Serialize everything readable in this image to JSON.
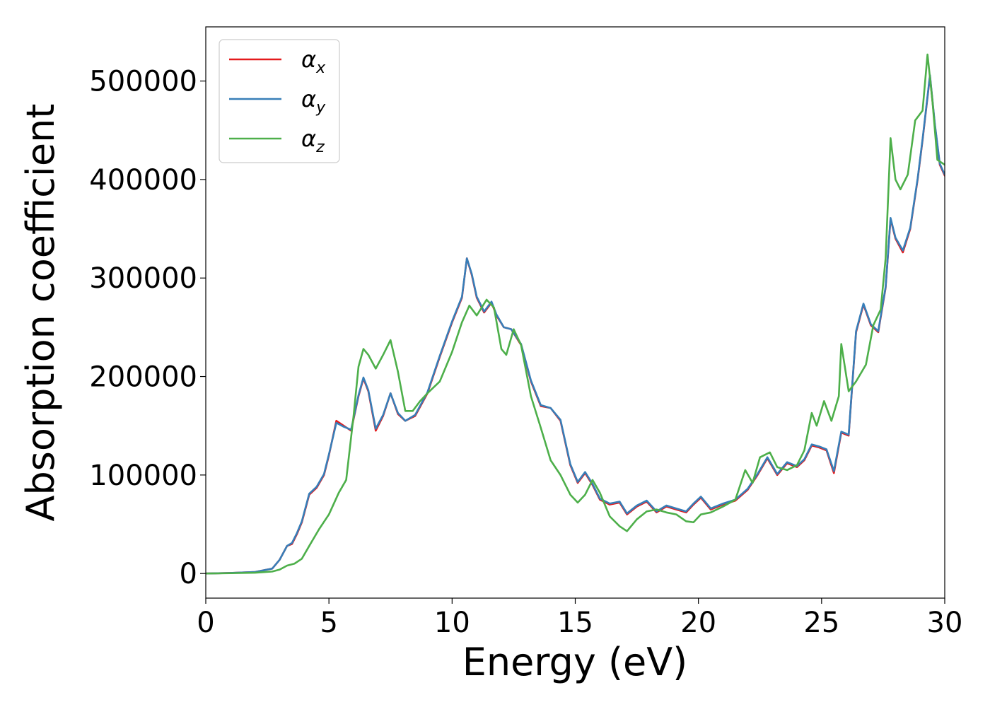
{
  "chart_data": {
    "type": "line",
    "title": "",
    "xlabel": "Energy (eV)",
    "ylabel": "Absorption coefficient",
    "xlim": [
      0,
      30
    ],
    "ylim": [
      -25000,
      555000
    ],
    "xticks": [
      0,
      5,
      10,
      15,
      20,
      25,
      30
    ],
    "yticks": [
      0,
      100000,
      200000,
      300000,
      400000,
      500000
    ],
    "grid": false,
    "legend_position": "top-left",
    "series": [
      {
        "name": "α",
        "subscript": "x",
        "color": "#e41a1c",
        "x": [
          0,
          1,
          2,
          2.7,
          3.0,
          3.3,
          3.5,
          3.7,
          3.9,
          4.2,
          4.5,
          4.8,
          5.0,
          5.3,
          5.6,
          5.9,
          6.2,
          6.4,
          6.6,
          6.9,
          7.2,
          7.5,
          7.8,
          8.1,
          8.5,
          9.0,
          9.5,
          10.0,
          10.4,
          10.6,
          10.8,
          11.0,
          11.3,
          11.6,
          11.8,
          12.1,
          12.4,
          12.8,
          13.2,
          13.6,
          14.0,
          14.4,
          14.8,
          15.1,
          15.4,
          15.7,
          16.0,
          16.4,
          16.8,
          17.1,
          17.5,
          17.9,
          18.3,
          18.7,
          19.1,
          19.5,
          19.8,
          20.1,
          20.5,
          21.0,
          21.5,
          22.0,
          22.4,
          22.8,
          23.2,
          23.6,
          24.0,
          24.3,
          24.6,
          24.9,
          25.2,
          25.5,
          25.8,
          26.1,
          26.4,
          26.7,
          27.0,
          27.3,
          27.6,
          27.8,
          28.0,
          28.3,
          28.6,
          28.9,
          29.1,
          29.4,
          29.6,
          29.8,
          30.0
        ],
        "values": [
          0,
          500,
          1500,
          5000,
          14000,
          28000,
          30000,
          40000,
          52000,
          80000,
          87000,
          100000,
          120000,
          155000,
          150000,
          145000,
          180000,
          198000,
          185000,
          145000,
          160000,
          183000,
          162000,
          155000,
          160000,
          183000,
          220000,
          255000,
          280000,
          320000,
          303000,
          280000,
          265000,
          275000,
          262000,
          250000,
          248000,
          232000,
          195000,
          170000,
          168000,
          155000,
          110000,
          92000,
          102000,
          90000,
          75000,
          70000,
          72000,
          60000,
          68000,
          73000,
          62000,
          68000,
          65000,
          62000,
          70000,
          77000,
          65000,
          70000,
          74000,
          85000,
          100000,
          117000,
          100000,
          112000,
          108000,
          115000,
          130000,
          128000,
          125000,
          102000,
          143000,
          140000,
          245000,
          273000,
          252000,
          245000,
          290000,
          360000,
          340000,
          326000,
          350000,
          400000,
          440000,
          505000,
          455000,
          415000,
          404000
        ]
      },
      {
        "name": "α",
        "subscript": "y",
        "color": "#377eb8",
        "x": [
          0,
          1,
          2,
          2.7,
          3.0,
          3.3,
          3.5,
          3.7,
          3.9,
          4.2,
          4.5,
          4.8,
          5.0,
          5.3,
          5.6,
          5.9,
          6.2,
          6.4,
          6.6,
          6.9,
          7.2,
          7.5,
          7.8,
          8.1,
          8.5,
          9.0,
          9.5,
          10.0,
          10.4,
          10.6,
          10.8,
          11.0,
          11.3,
          11.6,
          11.8,
          12.1,
          12.4,
          12.8,
          13.2,
          13.6,
          14.0,
          14.4,
          14.8,
          15.1,
          15.4,
          15.7,
          16.0,
          16.4,
          16.8,
          17.1,
          17.5,
          17.9,
          18.3,
          18.7,
          19.1,
          19.5,
          19.8,
          20.1,
          20.5,
          21.0,
          21.5,
          22.0,
          22.4,
          22.8,
          23.2,
          23.6,
          24.0,
          24.3,
          24.6,
          24.9,
          25.2,
          25.5,
          25.8,
          26.1,
          26.4,
          26.7,
          27.0,
          27.3,
          27.6,
          27.8,
          28.0,
          28.3,
          28.6,
          28.9,
          29.1,
          29.4,
          29.6,
          29.8,
          30.0
        ],
        "values": [
          0,
          500,
          1500,
          5000,
          14000,
          28000,
          31000,
          41000,
          53000,
          81000,
          88000,
          101000,
          121000,
          153000,
          149000,
          146000,
          181000,
          199000,
          186000,
          147000,
          161000,
          183000,
          163000,
          155000,
          161000,
          184000,
          221000,
          256000,
          281000,
          320000,
          304000,
          281000,
          266000,
          276000,
          263000,
          250000,
          248000,
          233000,
          196000,
          171000,
          168000,
          156000,
          111000,
          93000,
          103000,
          91000,
          76000,
          71000,
          73000,
          61000,
          69000,
          74000,
          63000,
          69000,
          66000,
          63000,
          71000,
          78000,
          66000,
          71000,
          75000,
          86000,
          101000,
          118000,
          101000,
          113000,
          109000,
          116000,
          131000,
          129000,
          126000,
          104000,
          144000,
          141000,
          246000,
          274000,
          253000,
          246000,
          291000,
          361000,
          341000,
          328000,
          351000,
          401000,
          441000,
          506000,
          456000,
          416000,
          405000
        ]
      },
      {
        "name": "α",
        "subscript": "z",
        "color": "#4daf4a",
        "x": [
          0,
          1,
          2,
          2.7,
          3.0,
          3.3,
          3.6,
          3.9,
          4.2,
          4.6,
          5.0,
          5.4,
          5.7,
          6.0,
          6.2,
          6.4,
          6.6,
          6.9,
          7.2,
          7.5,
          7.8,
          8.1,
          8.4,
          8.7,
          9.0,
          9.5,
          10.0,
          10.4,
          10.7,
          11.0,
          11.4,
          11.7,
          12.0,
          12.2,
          12.5,
          12.8,
          13.2,
          13.6,
          14.0,
          14.4,
          14.8,
          15.1,
          15.4,
          15.7,
          16.0,
          16.4,
          16.8,
          17.1,
          17.5,
          17.9,
          18.3,
          18.7,
          19.1,
          19.5,
          19.8,
          20.1,
          20.5,
          21.0,
          21.5,
          21.9,
          22.2,
          22.5,
          22.9,
          23.2,
          23.6,
          24.0,
          24.3,
          24.6,
          24.8,
          25.1,
          25.4,
          25.7,
          25.8,
          26.1,
          26.4,
          26.8,
          27.1,
          27.4,
          27.6,
          27.8,
          28.0,
          28.2,
          28.5,
          28.8,
          29.1,
          29.3,
          29.5,
          29.7,
          30.0
        ],
        "values": [
          0,
          300,
          800,
          2000,
          4000,
          8000,
          10000,
          15000,
          28000,
          45000,
          60000,
          82000,
          95000,
          160000,
          210000,
          228000,
          222000,
          208000,
          222000,
          237000,
          205000,
          165000,
          165000,
          175000,
          183000,
          195000,
          225000,
          255000,
          272000,
          262000,
          278000,
          270000,
          228000,
          222000,
          248000,
          232000,
          180000,
          148000,
          115000,
          100000,
          80000,
          72000,
          80000,
          95000,
          82000,
          58000,
          48000,
          43000,
          55000,
          63000,
          65000,
          62000,
          60000,
          53000,
          52000,
          60000,
          62000,
          68000,
          75000,
          105000,
          92000,
          118000,
          123000,
          108000,
          105000,
          110000,
          125000,
          163000,
          150000,
          175000,
          155000,
          180000,
          233000,
          185000,
          195000,
          212000,
          252000,
          268000,
          320000,
          442000,
          400000,
          390000,
          405000,
          460000,
          470000,
          527000,
          480000,
          420000,
          415000
        ]
      }
    ]
  }
}
